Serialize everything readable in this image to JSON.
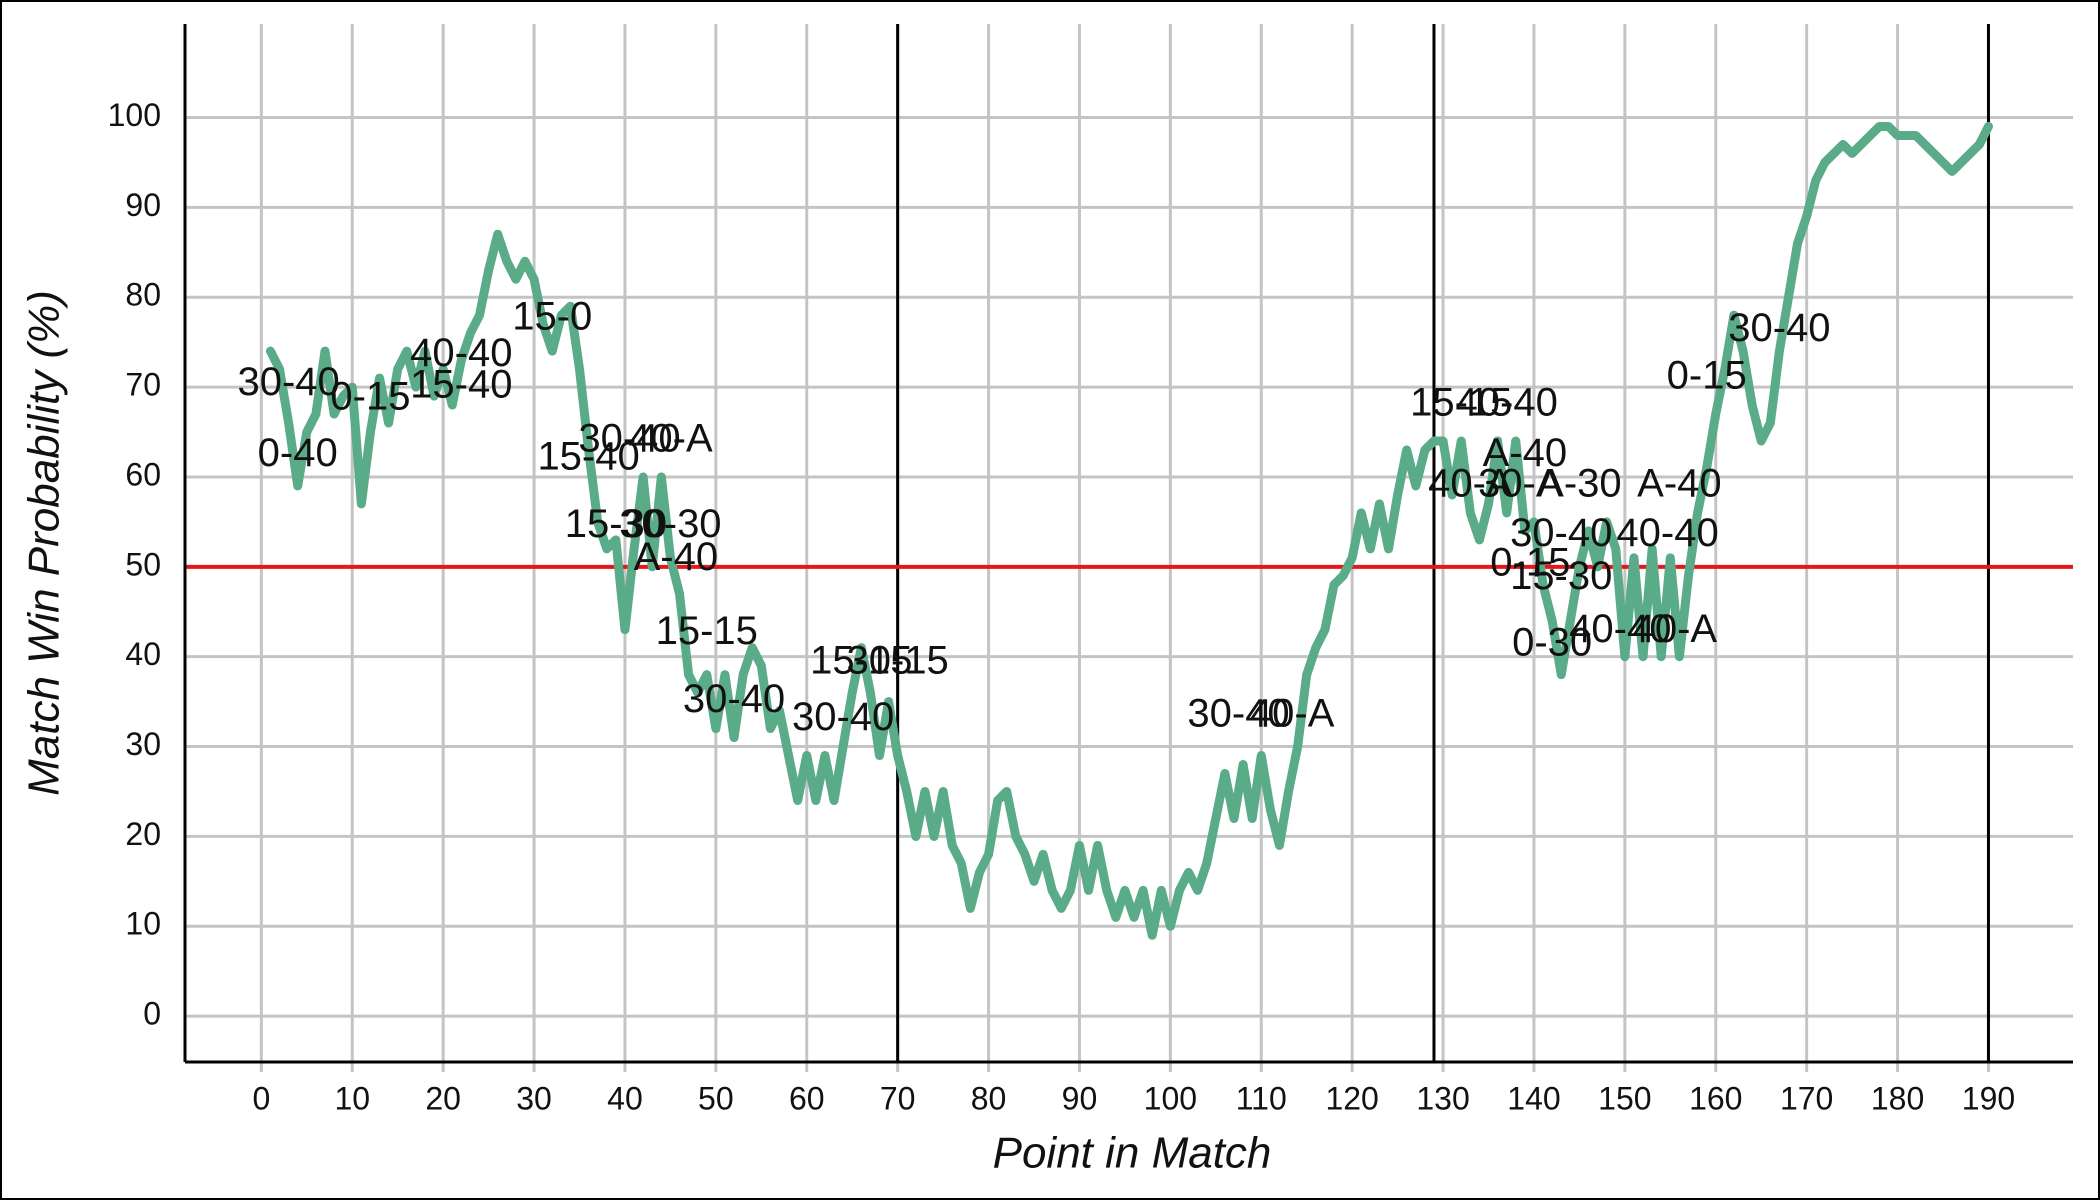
{
  "chart_data": {
    "type": "line",
    "xlabel": "Point in Match",
    "ylabel": "Match Win Probability (%)",
    "x": [
      1,
      2,
      3,
      4,
      5,
      6,
      7,
      8,
      9,
      10,
      11,
      12,
      13,
      14,
      15,
      16,
      17,
      18,
      19,
      20,
      21,
      22,
      23,
      24,
      25,
      26,
      27,
      28,
      29,
      30,
      31,
      32,
      33,
      34,
      35,
      36,
      37,
      38,
      39,
      40,
      41,
      42,
      43,
      44,
      45,
      46,
      47,
      48,
      49,
      50,
      51,
      52,
      53,
      54,
      55,
      56,
      57,
      58,
      59,
      60,
      61,
      62,
      63,
      64,
      65,
      66,
      67,
      68,
      69,
      70,
      71,
      72,
      73,
      74,
      75,
      76,
      77,
      78,
      79,
      80,
      81,
      82,
      83,
      84,
      85,
      86,
      87,
      88,
      89,
      90,
      91,
      92,
      93,
      94,
      95,
      96,
      97,
      98,
      99,
      100,
      101,
      102,
      103,
      104,
      105,
      106,
      107,
      108,
      109,
      110,
      111,
      112,
      113,
      114,
      115,
      116,
      117,
      118,
      119,
      120,
      121,
      122,
      123,
      124,
      125,
      126,
      127,
      128,
      129,
      130,
      131,
      132,
      133,
      134,
      135,
      136,
      137,
      138,
      139,
      140,
      141,
      142,
      143,
      144,
      145,
      146,
      147,
      148,
      149,
      150,
      151,
      152,
      153,
      154,
      155,
      156,
      157,
      158,
      159,
      160,
      161,
      162,
      163,
      164,
      165,
      166,
      167,
      168,
      169,
      170,
      171,
      172,
      173,
      174,
      175,
      176,
      177,
      178,
      179,
      180,
      181,
      182,
      183,
      184,
      185,
      186,
      187,
      188,
      189,
      190
    ],
    "series": [
      {
        "color": "#5aab88",
        "values": [
          74,
          72,
          66,
          59,
          65,
          67,
          74,
          67,
          69,
          70,
          57,
          65,
          71,
          66,
          72,
          74,
          70,
          74,
          69,
          72,
          68,
          73,
          76,
          78,
          83,
          87,
          84,
          82,
          84,
          82,
          77,
          74,
          78,
          79,
          72,
          63,
          55,
          52,
          53,
          43,
          52,
          60,
          50,
          60,
          51,
          47,
          38,
          36,
          38,
          32,
          38,
          31,
          38,
          41,
          39,
          32,
          34,
          29,
          24,
          29,
          24,
          29,
          24,
          30,
          36,
          41,
          36,
          29,
          35,
          29,
          25,
          20,
          25,
          20,
          25,
          19,
          17,
          12,
          16,
          18,
          24,
          25,
          20,
          18,
          15,
          18,
          14,
          12,
          14,
          19,
          14,
          19,
          14,
          11,
          14,
          11,
          14,
          9,
          14,
          10,
          14,
          16,
          14,
          17,
          22,
          27,
          22,
          28,
          22,
          29,
          23,
          19,
          25,
          30,
          38,
          41,
          43,
          48,
          49,
          51,
          56,
          52,
          57,
          52,
          58,
          63,
          59,
          63,
          64,
          64,
          58,
          64,
          56,
          53,
          57,
          64,
          56,
          64,
          54,
          55,
          48,
          44,
          38,
          44,
          50,
          54,
          50,
          55,
          52,
          40,
          51,
          40,
          52,
          40,
          51,
          40,
          49,
          56,
          61,
          67,
          72,
          78,
          74,
          68,
          64,
          66,
          74,
          80,
          86,
          89,
          93,
          95,
          96,
          97,
          96,
          97,
          98,
          99,
          99,
          98,
          98,
          98,
          97,
          96,
          95,
          94,
          95,
          96,
          97,
          99
        ]
      }
    ],
    "xlim": [
      -8.4,
      199.3
    ],
    "ylim": [
      -5.1,
      110.4
    ],
    "xticks": [
      0,
      10,
      20,
      30,
      40,
      50,
      60,
      70,
      80,
      90,
      100,
      110,
      120,
      130,
      140,
      150,
      160,
      170,
      180,
      190
    ],
    "yticks": [
      0,
      10,
      20,
      30,
      40,
      50,
      60,
      70,
      80,
      90,
      100
    ],
    "grid": true,
    "vlines": [
      70,
      129,
      190
    ],
    "hline": {
      "value": 50,
      "color": "#e8161b"
    },
    "annotations": [
      {
        "text": "30-40",
        "x": 3,
        "y": 70.3
      },
      {
        "text": "0-40",
        "x": 4,
        "y": 62.4
      },
      {
        "text": "0-15",
        "x": 12,
        "y": 68.7
      },
      {
        "text": "15-40",
        "x": 22,
        "y": 70
      },
      {
        "text": "40-40",
        "x": 22,
        "y": 73.5
      },
      {
        "text": "15-0",
        "x": 32,
        "y": 77.6
      },
      {
        "text": "15-40",
        "x": 36,
        "y": 62
      },
      {
        "text": "30-40",
        "x": 40.5,
        "y": 64
      },
      {
        "text": "40-A",
        "x": 45,
        "y": 64
      },
      {
        "text": "15-30",
        "x": 39,
        "y": 54.5
      },
      {
        "text": "30-30",
        "x": 45,
        "y": 54.5
      },
      {
        "text": "A-40",
        "x": 45.6,
        "y": 50.8
      },
      {
        "text": "15-15",
        "x": 49,
        "y": 42.6
      },
      {
        "text": "30-40",
        "x": 52,
        "y": 35
      },
      {
        "text": "30-40",
        "x": 64,
        "y": 33
      },
      {
        "text": "15-15",
        "x": 66,
        "y": 39.3
      },
      {
        "text": "30-15",
        "x": 70,
        "y": 39.3
      },
      {
        "text": "30-40",
        "x": 107.5,
        "y": 33.4
      },
      {
        "text": "40-A",
        "x": 113.4,
        "y": 33.4
      },
      {
        "text": "15-15",
        "x": 132,
        "y": 68
      },
      {
        "text": "40-40",
        "x": 137,
        "y": 68
      },
      {
        "text": "A-40",
        "x": 139,
        "y": 62.4
      },
      {
        "text": "40-A",
        "x": 133,
        "y": 59
      },
      {
        "text": "30-A",
        "x": 138.5,
        "y": 59
      },
      {
        "text": "A-30",
        "x": 145,
        "y": 59
      },
      {
        "text": "A-40",
        "x": 156,
        "y": 59
      },
      {
        "text": "30-40",
        "x": 143,
        "y": 53.5
      },
      {
        "text": "0-15",
        "x": 139.6,
        "y": 50.2
      },
      {
        "text": "15-30",
        "x": 143,
        "y": 48.7
      },
      {
        "text": "0-30",
        "x": 142,
        "y": 41.3
      },
      {
        "text": "40-40",
        "x": 149.5,
        "y": 42.8
      },
      {
        "text": "40-A",
        "x": 155.5,
        "y": 42.8
      },
      {
        "text": "40-40",
        "x": 154.7,
        "y": 53.5
      },
      {
        "text": "0-15",
        "x": 159,
        "y": 71
      },
      {
        "text": "30-40",
        "x": 167,
        "y": 76.3
      }
    ]
  }
}
